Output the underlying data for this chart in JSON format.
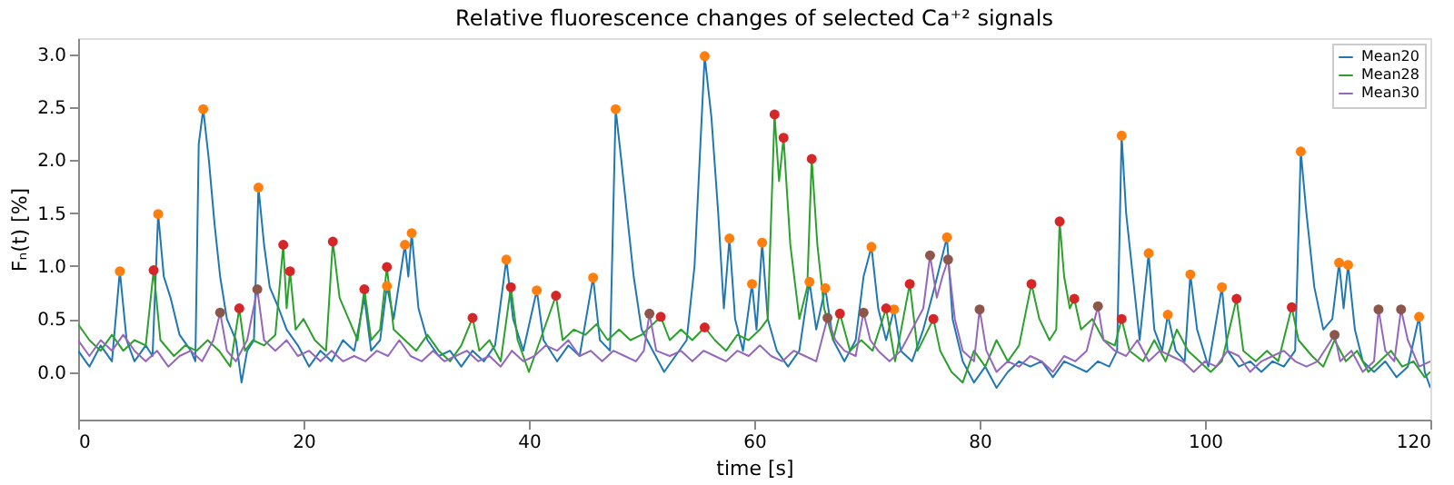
{
  "chart_data": {
    "type": "line",
    "title": "Relative fluorescence changes of selected Ca⁺² signals",
    "xlabel": "time [s]",
    "ylabel": "Fₙ(t) [%]",
    "xlim": [
      0,
      120
    ],
    "ylim": [
      -0.45,
      3.15
    ],
    "xticks": [
      0,
      20,
      40,
      60,
      80,
      100,
      120
    ],
    "yticks": [
      {
        "value": 0,
        "label": "0.0"
      },
      {
        "value": 0.5,
        "label": "0.5"
      },
      {
        "value": 1,
        "label": "1.0"
      },
      {
        "value": 1.5,
        "label": "1.5"
      },
      {
        "value": 2,
        "label": "2.0"
      },
      {
        "value": 2.5,
        "label": "2.5"
      },
      {
        "value": 3,
        "label": "3.0"
      }
    ],
    "grid": false,
    "legend": "top right",
    "marker": "none",
    "line_style": "solid",
    "series": [
      {
        "name": "Mean20",
        "color": "#1f77b4",
        "x": [
          0,
          1,
          2,
          3,
          3.7,
          4.3,
          5,
          6,
          6.6,
          7.1,
          7.6,
          8.2,
          9,
          10,
          10.4,
          10.7,
          11.1,
          11.6,
          12.1,
          12.6,
          13.2,
          14,
          14.5,
          15,
          15.6,
          16.0,
          16.5,
          17,
          17.8,
          18.5,
          19.5,
          20.5,
          21.5,
          22.5,
          23.5,
          24.5,
          25.4,
          26,
          26.8,
          27.4,
          28,
          29.0,
          29.3,
          29.6,
          30.2,
          31,
          32,
          33,
          34,
          35,
          36,
          37,
          38.0,
          38.6,
          39.5,
          40.7,
          41.3,
          42.5,
          43.5,
          44.5,
          45.7,
          46.3,
          47.2,
          47.7,
          48.2,
          48.7,
          49.3,
          50,
          51,
          52,
          53,
          54,
          54.7,
          55.6,
          56.2,
          56.8,
          57.3,
          57.8,
          58.3,
          59,
          59.8,
          60.2,
          60.7,
          61.2,
          62,
          63,
          64,
          64.9,
          65.5,
          66.3,
          67,
          68,
          69,
          69.7,
          70.4,
          71,
          71.7,
          72.4,
          73,
          74,
          75,
          76,
          77.1,
          77.6,
          78.5,
          79.5,
          80.5,
          81.5,
          82.5,
          83.5,
          84.5,
          85.5,
          86.5,
          87.5,
          88.5,
          89.5,
          90.5,
          91.5,
          92.2,
          92.6,
          93,
          93.6,
          94.2,
          95.0,
          95.5,
          96.2,
          96.7,
          97.4,
          98.2,
          98.7,
          99.3,
          100.3,
          101.5,
          102,
          103,
          104,
          105,
          106,
          107,
          108,
          108.5,
          109,
          109.7,
          110.5,
          111.3,
          111.9,
          112.3,
          112.7,
          113.3,
          114,
          115,
          116,
          117,
          118,
          119.0,
          119.5,
          120
        ],
        "values": [
          0.2,
          0.05,
          0.25,
          0.1,
          0.95,
          0.3,
          0.1,
          0.25,
          0.15,
          1.49,
          0.9,
          0.7,
          0.35,
          0.2,
          0.1,
          2.15,
          2.48,
          2.0,
          1.4,
          0.9,
          0.5,
          0.3,
          -0.1,
          0.2,
          0.3,
          1.74,
          1.2,
          0.8,
          0.6,
          0.4,
          0.25,
          0.05,
          0.2,
          0.1,
          0.3,
          0.2,
          0.7,
          0.2,
          0.3,
          0.81,
          0.5,
          1.2,
          0.9,
          1.31,
          0.6,
          0.3,
          0.15,
          0.2,
          0.05,
          0.2,
          0.1,
          0.25,
          1.06,
          0.5,
          0.2,
          0.77,
          0.3,
          0.1,
          0.25,
          0.15,
          0.89,
          0.3,
          0.2,
          2.48,
          2.0,
          1.5,
          0.9,
          0.4,
          0.2,
          0.0,
          0.15,
          0.3,
          1.0,
          2.98,
          2.4,
          1.5,
          0.6,
          1.26,
          0.5,
          0.2,
          0.83,
          0.4,
          1.22,
          0.5,
          0.2,
          0.05,
          0.2,
          0.85,
          0.4,
          0.79,
          0.3,
          0.1,
          0.3,
          0.9,
          1.18,
          0.6,
          0.3,
          0.59,
          0.2,
          0.1,
          0.4,
          0.8,
          1.27,
          0.5,
          0.1,
          -0.1,
          0.05,
          -0.15,
          0.0,
          0.1,
          0.05,
          0.1,
          -0.05,
          0.1,
          0.05,
          0.0,
          0.1,
          0.05,
          0.2,
          2.23,
          1.5,
          0.9,
          0.3,
          1.12,
          0.4,
          0.2,
          0.54,
          0.2,
          0.1,
          0.92,
          0.4,
          0.05,
          0.8,
          0.2,
          0.05,
          0.1,
          0.0,
          0.1,
          0.05,
          0.2,
          2.08,
          1.5,
          0.8,
          0.4,
          0.5,
          1.03,
          0.6,
          1.01,
          0.4,
          0.1,
          0.0,
          0.1,
          -0.05,
          0.05,
          0.52,
          0.0,
          -0.15
        ]
      },
      {
        "name": "Mean28",
        "color": "#2ca02c",
        "x": [
          0,
          1,
          2,
          3,
          4,
          5,
          6,
          6.7,
          7.3,
          8.5,
          9.5,
          10.5,
          11.5,
          12.5,
          13.5,
          14.3,
          14.8,
          15.5,
          16.5,
          17.5,
          18.2,
          18.5,
          18.8,
          19.3,
          20,
          21,
          22,
          22.6,
          23.2,
          24,
          24.8,
          25.4,
          26,
          26.8,
          27.4,
          28,
          29,
          30,
          31,
          32,
          33,
          34,
          35.0,
          35.6,
          36.5,
          37.5,
          38.4,
          39,
          40,
          41,
          42.4,
          43,
          44,
          45,
          46,
          47,
          48,
          49,
          50,
          51.7,
          52.5,
          53.5,
          54.5,
          55.6,
          56.5,
          57.5,
          58.5,
          59.5,
          60.5,
          61.2,
          61.8,
          62.2,
          62.6,
          63.2,
          64,
          64.7,
          65.1,
          65.6,
          66.2,
          67,
          67.6,
          68.5,
          69.5,
          70.5,
          71.7,
          72.5,
          73.8,
          74.5,
          75.9,
          76.5,
          77.5,
          78.5,
          79.5,
          80.5,
          81.5,
          82.5,
          83.5,
          84.6,
          85.3,
          86.2,
          86.8,
          87.1,
          87.5,
          88.0,
          88.4,
          89,
          90,
          91,
          92,
          92.6,
          93.3,
          94.5,
          95.5,
          96.5,
          97.5,
          98.5,
          99.5,
          100.5,
          101.5,
          102.8,
          103.4,
          104.5,
          105.5,
          106.5,
          107.7,
          108.3,
          109.5,
          110.5,
          111.5,
          112.5,
          113.5,
          114.5,
          115.5,
          116.5,
          117.5,
          118.5,
          119.5,
          120
        ],
        "values": [
          0.45,
          0.3,
          0.2,
          0.35,
          0.2,
          0.3,
          0.25,
          0.96,
          0.3,
          0.15,
          0.25,
          0.2,
          0.3,
          0.2,
          0.05,
          0.6,
          0.2,
          0.3,
          0.25,
          0.35,
          1.2,
          0.6,
          0.95,
          0.4,
          0.5,
          0.3,
          0.2,
          1.23,
          0.7,
          0.5,
          0.3,
          0.78,
          0.3,
          0.4,
          0.99,
          0.4,
          0.3,
          0.2,
          0.35,
          0.2,
          0.1,
          0.25,
          0.51,
          0.2,
          0.3,
          0.1,
          0.8,
          0.3,
          0.0,
          0.3,
          0.72,
          0.3,
          0.4,
          0.35,
          0.45,
          0.3,
          0.4,
          0.3,
          0.35,
          0.52,
          0.3,
          0.4,
          0.3,
          0.42,
          0.3,
          0.2,
          0.35,
          0.3,
          0.4,
          0.5,
          2.43,
          1.8,
          2.21,
          1.2,
          0.5,
          0.8,
          2.01,
          1.2,
          0.6,
          0.3,
          0.55,
          0.2,
          0.3,
          0.2,
          0.6,
          0.1,
          0.83,
          0.2,
          0.5,
          0.2,
          0.0,
          -0.1,
          0.2,
          0.05,
          0.3,
          0.1,
          0.25,
          0.83,
          0.5,
          0.3,
          0.4,
          1.42,
          0.9,
          0.6,
          0.69,
          0.4,
          0.5,
          0.3,
          0.25,
          0.5,
          0.2,
          0.1,
          0.3,
          0.1,
          0.4,
          0.2,
          0.1,
          0.0,
          0.1,
          0.69,
          0.2,
          0.1,
          0.2,
          0.1,
          0.61,
          0.3,
          0.15,
          0.05,
          0.3,
          0.1,
          0.2,
          0.0,
          0.1,
          0.2,
          0.05,
          0.1,
          -0.05,
          0.0
        ]
      },
      {
        "name": "Mean30",
        "color": "#9467bd",
        "x": [
          0,
          1,
          2,
          3,
          4,
          5,
          6,
          7,
          8,
          9,
          10,
          11,
          12,
          12.6,
          13.2,
          14,
          15,
          15.9,
          16.5,
          17.5,
          18.5,
          19.5,
          20.5,
          21.5,
          22.5,
          23.5,
          24.5,
          25.5,
          26.5,
          27.5,
          28.5,
          29.5,
          30.5,
          31.5,
          32.5,
          33.5,
          34.5,
          35.5,
          36.5,
          37.5,
          38.5,
          39.5,
          40.5,
          41.5,
          42.5,
          43.5,
          44.5,
          45.5,
          46.5,
          47.5,
          48.5,
          49.5,
          50.2,
          50.7,
          51.3,
          52.5,
          53.5,
          54.5,
          55.5,
          56.5,
          57.5,
          58.5,
          59.5,
          60.5,
          61.5,
          62.5,
          63.5,
          64.5,
          65.5,
          66.5,
          67.2,
          68,
          69,
          69.7,
          70.3,
          71,
          72,
          73,
          74,
          75,
          75.6,
          76.2,
          76.7,
          77.2,
          77.8,
          78.5,
          79.5,
          80.0,
          80.6,
          81.5,
          82.5,
          83.5,
          84.5,
          85.5,
          86.5,
          87.5,
          88.5,
          89.5,
          90.5,
          91,
          92,
          93,
          94,
          95,
          96,
          97,
          98,
          99,
          100,
          101,
          102,
          103,
          104,
          105,
          106,
          107,
          108,
          109,
          110,
          111.5,
          112,
          113,
          114,
          115,
          115.4,
          116,
          116.8,
          117.4,
          118,
          119,
          120
        ],
        "values": [
          0.3,
          0.15,
          0.3,
          0.2,
          0.35,
          0.2,
          0.1,
          0.2,
          0.05,
          0.15,
          0.2,
          0.1,
          0.3,
          0.56,
          0.2,
          0.1,
          0.3,
          0.78,
          0.3,
          0.2,
          0.3,
          0.15,
          0.2,
          0.1,
          0.2,
          0.1,
          0.15,
          0.1,
          0.2,
          0.15,
          0.3,
          0.15,
          0.1,
          0.2,
          0.1,
          0.15,
          0.2,
          0.1,
          0.15,
          0.05,
          0.2,
          0.1,
          0.15,
          0.25,
          0.2,
          0.3,
          0.15,
          0.2,
          0.1,
          0.2,
          0.15,
          0.1,
          0.2,
          0.55,
          0.2,
          0.15,
          0.2,
          0.1,
          0.2,
          0.15,
          0.1,
          0.2,
          0.15,
          0.25,
          0.15,
          0.1,
          0.2,
          0.15,
          0.1,
          0.51,
          0.3,
          0.2,
          0.15,
          0.56,
          0.3,
          0.2,
          0.1,
          0.2,
          0.4,
          0.6,
          1.1,
          0.7,
          0.9,
          1.06,
          0.5,
          0.2,
          0.1,
          0.59,
          0.2,
          0.0,
          0.1,
          0.05,
          0.15,
          0.1,
          0.0,
          0.15,
          0.1,
          0.2,
          0.62,
          0.3,
          0.2,
          0.15,
          0.3,
          0.1,
          0.2,
          0.15,
          0.1,
          0.0,
          0.1,
          0.05,
          0.2,
          0.15,
          0.0,
          0.1,
          0.15,
          0.2,
          0.1,
          0.05,
          0.1,
          0.35,
          0.1,
          0.2,
          0.0,
          0.1,
          0.59,
          0.2,
          0.1,
          0.59,
          0.3,
          0.05,
          0.1
        ]
      },
      {
        "type": "scatter",
        "color": "#ff7f0e",
        "marker": "circle",
        "x": [
          3.7,
          7.1,
          11.1,
          16.0,
          27.4,
          29.0,
          29.6,
          38.0,
          40.7,
          45.7,
          47.7,
          55.6,
          57.8,
          59.8,
          60.7,
          64.9,
          66.3,
          70.4,
          72.4,
          77.1,
          92.6,
          95.0,
          96.7,
          98.7,
          101.5,
          108.5,
          111.9,
          112.7,
          119.0
        ],
        "values": [
          0.95,
          1.49,
          2.48,
          1.74,
          0.81,
          1.2,
          1.31,
          1.06,
          0.77,
          0.89,
          2.48,
          2.98,
          1.26,
          0.83,
          1.22,
          0.85,
          0.79,
          1.18,
          0.59,
          1.27,
          2.23,
          1.12,
          0.54,
          0.92,
          0.8,
          2.08,
          1.03,
          1.01,
          0.52
        ]
      },
      {
        "type": "scatter",
        "color": "#d62728",
        "marker": "circle",
        "x": [
          6.7,
          14.3,
          18.2,
          18.8,
          22.6,
          25.4,
          27.4,
          35.0,
          38.4,
          42.4,
          51.7,
          55.6,
          61.8,
          62.6,
          65.1,
          67.6,
          71.7,
          73.8,
          75.9,
          84.6,
          87.1,
          88.4,
          92.6,
          102.8,
          107.7
        ],
        "values": [
          0.96,
          0.6,
          1.2,
          0.95,
          1.23,
          0.78,
          0.99,
          0.51,
          0.8,
          0.72,
          0.52,
          0.42,
          2.43,
          2.21,
          2.01,
          0.55,
          0.6,
          0.83,
          0.5,
          0.83,
          1.42,
          0.69,
          0.5,
          0.69,
          0.61
        ]
      },
      {
        "type": "scatter",
        "color": "#8c564b",
        "marker": "circle",
        "x": [
          12.6,
          15.9,
          50.7,
          66.5,
          69.7,
          75.6,
          77.2,
          80.0,
          90.5,
          111.5,
          115.4,
          117.4
        ],
        "values": [
          0.56,
          0.78,
          0.55,
          0.51,
          0.56,
          1.1,
          1.06,
          0.59,
          0.62,
          0.35,
          0.59,
          0.59
        ]
      }
    ]
  }
}
